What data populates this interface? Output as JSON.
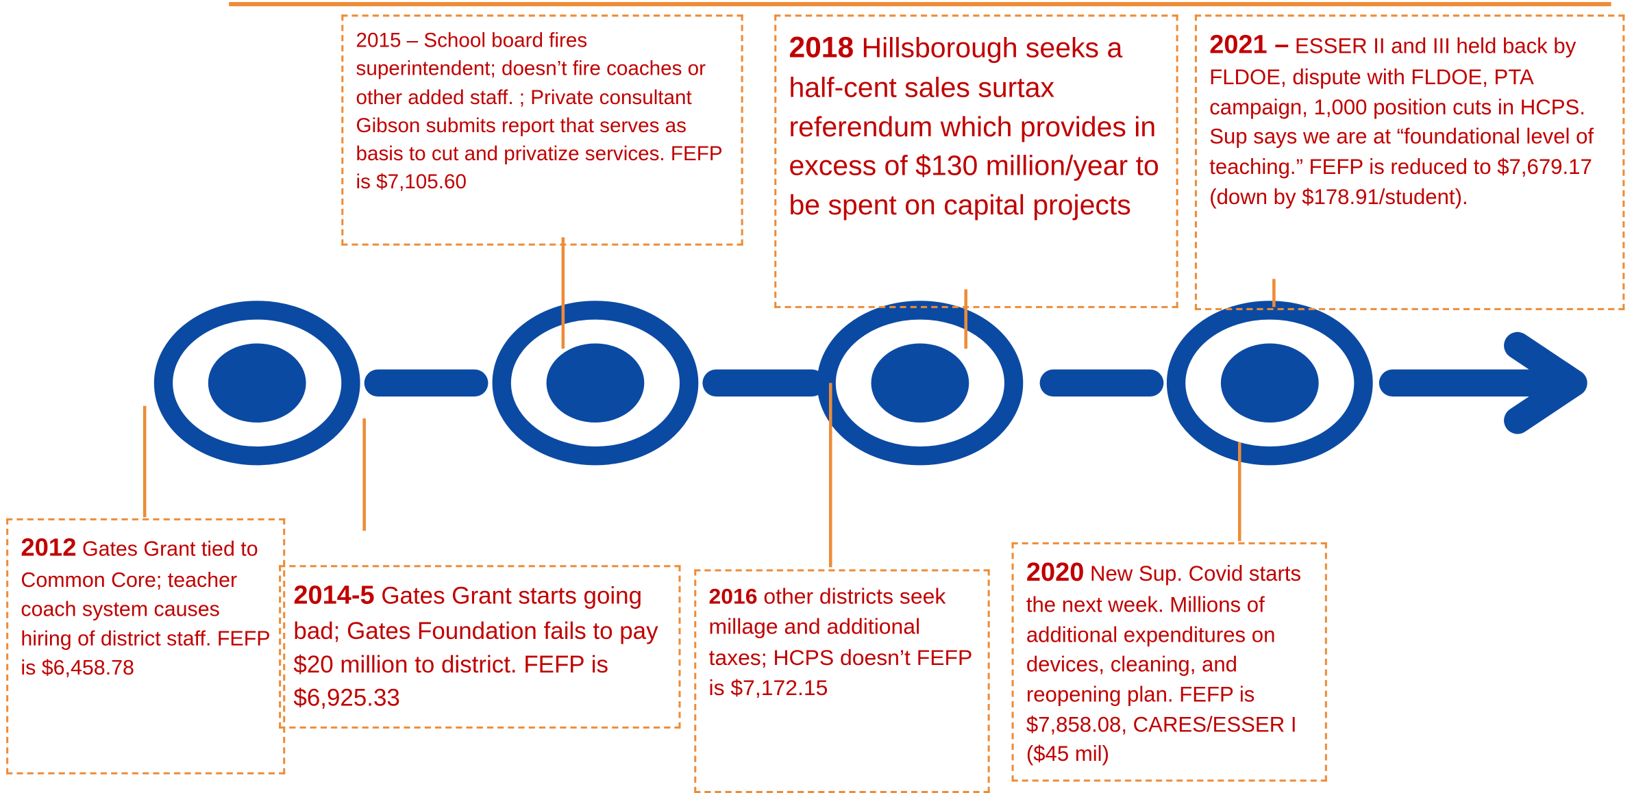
{
  "events": [
    {
      "year": "2012",
      "text": "Gates Grant tied to Common Core; teacher coach system causes hiring of district staff.  FEFP is $6,458.78"
    },
    {
      "year": "2014-5",
      "text": "Gates Grant starts going bad; Gates Foundation fails to pay $20 million to district. FEFP is $6,925.33"
    },
    {
      "text": "2015 – School board fires superintendent; doesn’t fire coaches or other added staff. ; Private consultant Gibson submits report that serves as basis to cut and privatize services.  FEFP is $7,105.60"
    },
    {
      "year": "2016",
      "text": "other districts seek millage and additional taxes; HCPS doesn’t FEFP is $7,172.15"
    },
    {
      "year": "2018",
      "text": "Hillsborough seeks a half-cent sales surtax referendum which provides in excess of $130 million/year to be spent on capital projects"
    },
    {
      "year": "2020",
      "text": "New Sup.  Covid starts the next week. Millions of additional expenditures on devices, cleaning, and reopening plan. FEFP is $7,858.08, CARES/ESSER I ($45 mil)"
    },
    {
      "year": "2021 –",
      "text": "ESSER II and III held back by FLDOE, dispute with FLDOE, PTA campaign, 1,000 position cuts in HCPS.  Sup says we are at “foundational level of teaching.” FEFP is reduced to $7,679.17 (down by $178.91/student)."
    }
  ]
}
